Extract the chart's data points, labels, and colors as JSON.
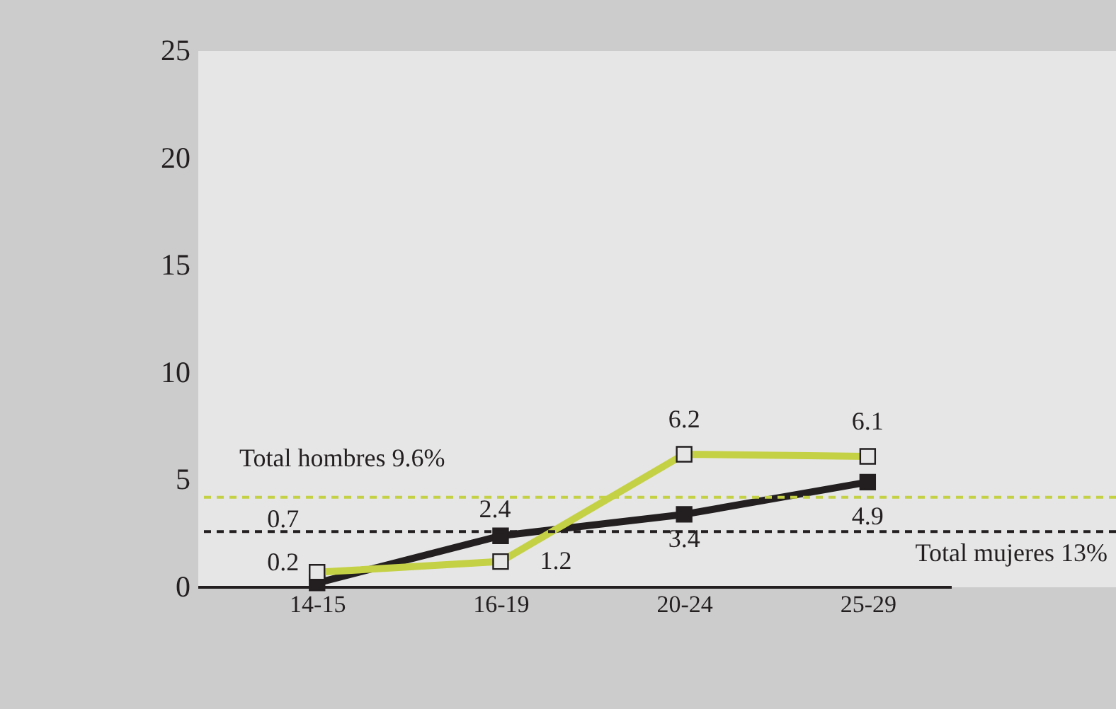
{
  "chart_data": {
    "type": "line",
    "categories": [
      "14-15",
      "16-19",
      "20-24",
      "25-29"
    ],
    "series": [
      {
        "color": "#231f20",
        "values": [
          0.2,
          2.4,
          3.4,
          4.9
        ]
      },
      {
        "color": "#c5d144",
        "values": [
          0.7,
          1.2,
          6.2,
          6.1
        ]
      }
    ],
    "ylim": [
      0,
      25
    ],
    "yticks": [
      0,
      5,
      10,
      15,
      20,
      25
    ],
    "grid": false,
    "marker": "square",
    "line_style": "solid",
    "data_labels": true,
    "ref_lines": [
      {
        "axis": "y",
        "value": 4.2,
        "label": "Total hombres 9.6%",
        "color": "#c5d144",
        "line_style": "dashed"
      },
      {
        "axis": "y",
        "value": 2.6,
        "label": "Total mujeres 13%",
        "color": "#231f20",
        "line_style": "dashed"
      }
    ]
  }
}
